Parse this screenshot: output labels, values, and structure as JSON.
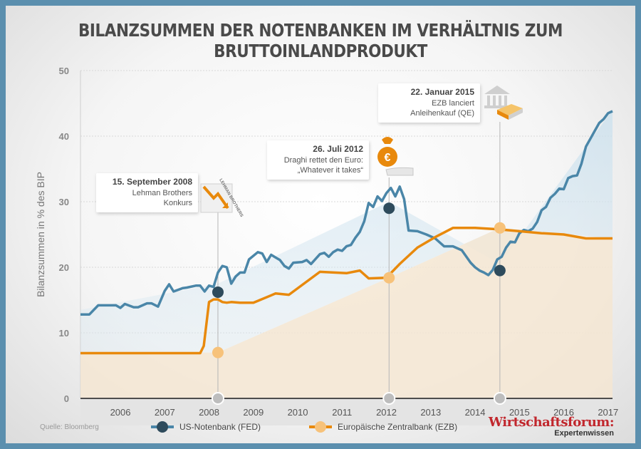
{
  "chart_data": {
    "type": "line",
    "title": "BILANZSUMMEN DER NOTENBANKEN IM VERHÄLTNIS ZUM BRUTTOINLANDPRODUKT",
    "ylabel": "Bilanzsummen in % des BIP",
    "xlabel": "",
    "xlim": [
      2005.6,
      2017.6
    ],
    "ylim": [
      0,
      50
    ],
    "yticks": [
      0,
      10,
      20,
      30,
      40,
      50
    ],
    "xticks": [
      "2006",
      "2007",
      "2008",
      "2009",
      "2010",
      "2011",
      "2012",
      "2013",
      "2014",
      "2015",
      "2016",
      "2017"
    ],
    "grid": true,
    "legend_position": "bottom",
    "source": "Quelle: Bloomberg",
    "series": [
      {
        "name": "US-Notenbank (FED)",
        "color": "#4a86a8",
        "x": [
          2005.6,
          2005.8,
          2006.0,
          2006.2,
          2006.4,
          2006.5,
          2006.6,
          2006.8,
          2006.9,
          2007.1,
          2007.2,
          2007.35,
          2007.5,
          2007.6,
          2007.7,
          2007.9,
          2008.0,
          2008.2,
          2008.3,
          2008.4,
          2008.5,
          2008.6,
          2008.7,
          2008.8,
          2008.9,
          2009.0,
          2009.1,
          2009.2,
          2009.3,
          2009.4,
          2009.6,
          2009.7,
          2009.8,
          2009.9,
          2010.0,
          2010.1,
          2010.2,
          2010.3,
          2010.4,
          2010.6,
          2010.7,
          2010.8,
          2011.0,
          2011.1,
          2011.2,
          2011.3,
          2011.4,
          2011.5,
          2011.6,
          2011.7,
          2011.8,
          2011.9,
          2012.0,
          2012.1,
          2012.2,
          2012.3,
          2012.4,
          2012.5,
          2012.6,
          2012.7,
          2012.8,
          2012.9,
          2013.0,
          2013.2,
          2013.4,
          2013.6,
          2013.8,
          2014.0,
          2014.2,
          2014.4,
          2014.5,
          2014.6,
          2014.7,
          2014.8,
          2014.9,
          2015.0,
          2015.1,
          2015.2,
          2015.3,
          2015.4,
          2015.5,
          2015.6,
          2015.7,
          2015.8,
          2015.9,
          2016.0,
          2016.1,
          2016.2,
          2016.3,
          2016.4,
          2016.5,
          2016.6,
          2016.7,
          2016.8,
          2016.9,
          2017.0,
          2017.1,
          2017.2,
          2017.3,
          2017.4,
          2017.5,
          2017.6
        ],
        "values": [
          12.8,
          12.8,
          14.2,
          14.2,
          14.2,
          13.8,
          14.4,
          13.9,
          13.9,
          14.5,
          14.5,
          14.0,
          16.4,
          17.4,
          16.3,
          16.8,
          16.9,
          17.2,
          17.2,
          16.3,
          17.2,
          17.0,
          19.2,
          20.2,
          20.0,
          17.5,
          18.6,
          19.2,
          19.2,
          21.2,
          22.3,
          22.1,
          20.8,
          21.9,
          21.5,
          21.1,
          20.2,
          19.8,
          20.7,
          20.8,
          21.1,
          20.5,
          22.0,
          22.2,
          21.6,
          22.3,
          22.7,
          22.5,
          23.2,
          23.4,
          24.5,
          25.4,
          27.0,
          29.8,
          29.2,
          30.8,
          30.1,
          31.3,
          32.1,
          30.8,
          32.3,
          30.4,
          25.6,
          25.5,
          25.0,
          24.4,
          23.2,
          23.2,
          22.6,
          20.7,
          20.0,
          19.5,
          19.2,
          18.8,
          19.6,
          21.2,
          21.6,
          23.0,
          23.9,
          23.8,
          25.2,
          25.7,
          25.5,
          25.9,
          26.9,
          28.7,
          29.2,
          30.6,
          31.2,
          32.0,
          31.9,
          33.6,
          33.9,
          34.0,
          35.8,
          38.4,
          39.6,
          40.8,
          42.0,
          42.6,
          43.5,
          43.8
        ]
      },
      {
        "name": "Europäische Zentralbank (EZB)",
        "color": "#e8890c",
        "x": [
          2005.6,
          2008.3,
          2008.38,
          2008.5,
          2008.6,
          2008.7,
          2008.8,
          2008.9,
          2009.0,
          2009.2,
          2009.5,
          2010.0,
          2010.3,
          2011.0,
          2011.6,
          2011.9,
          2012.1,
          2012.5,
          2012.8,
          2013.2,
          2013.6,
          2014.0,
          2014.5,
          2015.0,
          2015.5,
          2016.0,
          2016.5,
          2017.0,
          2017.6
        ],
        "values": [
          6.9,
          6.9,
          8.0,
          14.7,
          15.1,
          15.1,
          14.7,
          14.6,
          14.7,
          14.6,
          14.6,
          16.0,
          15.8,
          19.3,
          19.1,
          19.5,
          18.3,
          18.4,
          20.5,
          23.0,
          24.6,
          26.0,
          26.0,
          25.8,
          25.5,
          25.2,
          25.0,
          24.4,
          24.4
        ]
      }
    ],
    "annotations": [
      {
        "date": "15. September 2008",
        "lines": [
          "Lehman Brothers",
          "Konkurs"
        ],
        "x": 2008.7,
        "fed": 16.2,
        "ezb": 7.0,
        "icon_label": "LEHMAN BROTHERS"
      },
      {
        "date": "26. Juli 2012",
        "lines": [
          "Draghi rettet den Euro:",
          "„Whatever it takes“"
        ],
        "x": 2012.56,
        "fed": 29.0,
        "ezb": 18.4,
        "icon_label": "€"
      },
      {
        "date": "22. Januar 2015",
        "lines": [
          "EZB lanciert",
          "Anleihenkauf (QE)"
        ],
        "x": 2015.06,
        "fed": 19.5,
        "ezb": 26.0,
        "icon_label": ""
      }
    ]
  }
}
